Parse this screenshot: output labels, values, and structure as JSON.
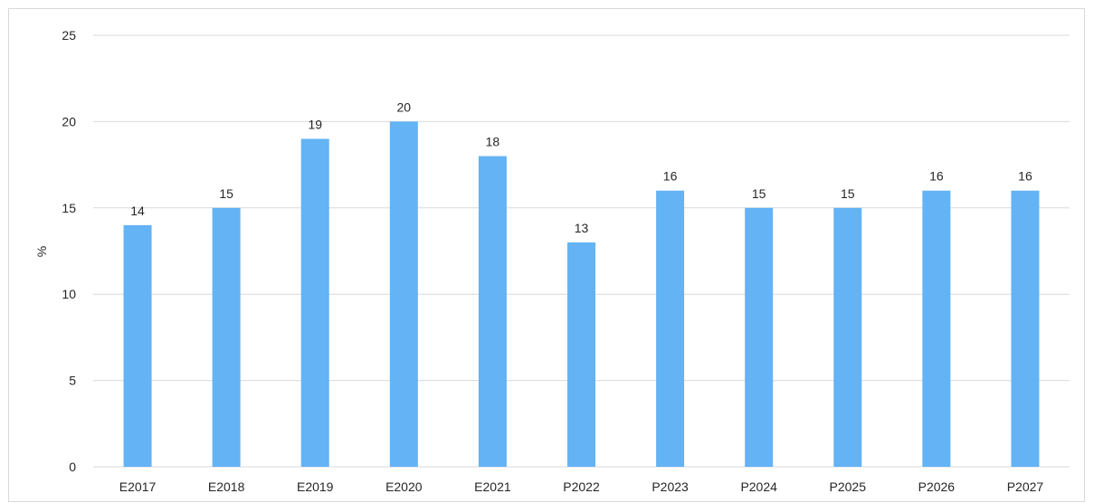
{
  "chart_data": {
    "type": "bar",
    "title": "",
    "xlabel": "",
    "ylabel": "%",
    "ylim": [
      0,
      25
    ],
    "yticks": [
      0,
      5,
      10,
      15,
      20,
      25
    ],
    "grid": true,
    "legend": "none",
    "bar_color": "#63b3f5",
    "categories": [
      "E2017",
      "E2018",
      "E2019",
      "E2020",
      "E2021",
      "P2022",
      "P2023",
      "P2024",
      "P2025",
      "P2026",
      "P2027"
    ],
    "values": [
      14,
      15,
      19,
      20,
      18,
      13,
      16,
      15,
      15,
      16,
      16
    ]
  }
}
